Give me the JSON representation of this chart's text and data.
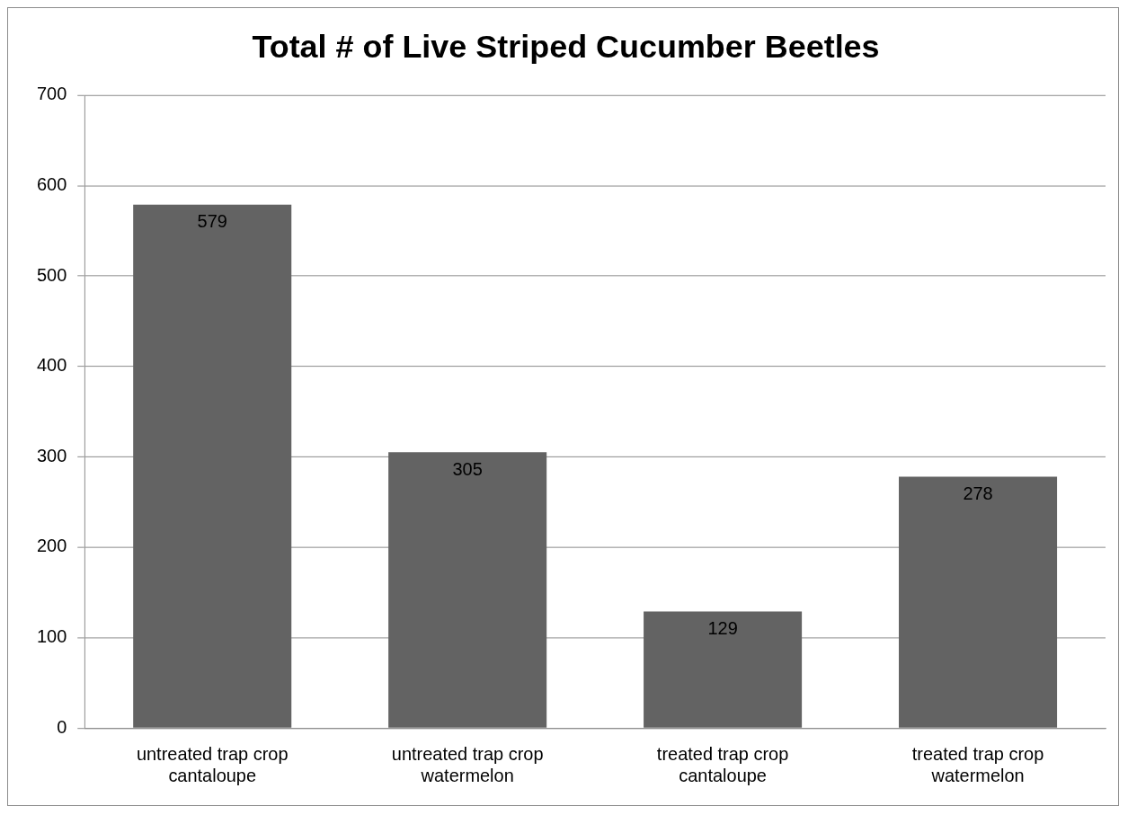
{
  "chart_data": {
    "type": "bar",
    "title": "Total # of Live Striped Cucumber Beetles",
    "categories": [
      "untreated trap crop\ncantaloupe",
      "untreated trap crop\nwatermelon",
      "treated trap crop\ncantaloupe",
      "treated trap crop\nwatermelon"
    ],
    "values": [
      579,
      305,
      129,
      278
    ],
    "color": "#636363",
    "ylim": [
      0,
      700
    ],
    "yticks": [
      0,
      100,
      200,
      300,
      400,
      500,
      600,
      700
    ],
    "grid": "y",
    "data_labels": true,
    "legend": false
  }
}
